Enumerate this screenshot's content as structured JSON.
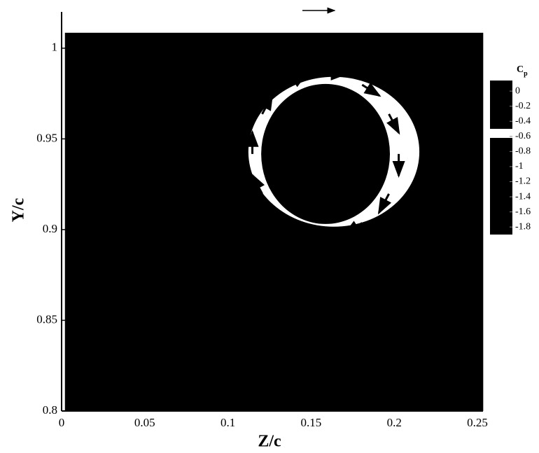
{
  "chart_data": {
    "type": "contour",
    "x_label": "Z/c",
    "y_label": "Y/c",
    "xlim": [
      0,
      0.25
    ],
    "ylim": [
      0.8,
      1.02
    ],
    "xticks": [
      0,
      0.05,
      0.1,
      0.15,
      0.2,
      0.25
    ],
    "yticks": [
      0.8,
      0.85,
      0.9,
      0.95,
      1
    ],
    "background_color": "#000",
    "field": {
      "zlim": [
        0.002,
        0.2535
      ],
      "ylim": [
        0.8,
        1.0085
      ]
    },
    "regions": [
      {
        "color": "#fff",
        "outer": {
          "z": 0.1637,
          "y": 0.9429,
          "rz": 0.0514,
          "ry": 0.0413
        },
        "inner": {
          "z": 0.1587,
          "y": 0.9417,
          "rz": 0.0387,
          "ry": 0.0386
        }
      }
    ],
    "vectors": {
      "color": "#000",
      "z": [
        0.2027,
        0.1968,
        0.1807,
        0.1587,
        0.1367,
        0.1206,
        0.1147,
        0.1206,
        0.1367,
        0.1587,
        0.1807,
        0.1968
      ],
      "y": [
        0.9417,
        0.9637,
        0.9798,
        0.9857,
        0.9798,
        0.9637,
        0.9417,
        0.9197,
        0.9036,
        0.8977,
        0.9036,
        0.9197
      ],
      "u": [
        0,
        0.006,
        0.0104,
        0.012,
        0.0104,
        0.006,
        0,
        -0.006,
        -0.0104,
        -0.012,
        -0.0104,
        -0.006
      ],
      "v": [
        -0.012,
        -0.0104,
        -0.006,
        0,
        0.006,
        0.0104,
        0.012,
        0.0104,
        0.006,
        0,
        -0.006,
        -0.0104
      ]
    },
    "colorbar": {
      "title": "C",
      "title_sub": "p",
      "clim": [
        -1.9,
        0.14
      ],
      "ticks": [
        0,
        -0.2,
        -0.4,
        -0.6,
        -0.8,
        -1,
        -1.2,
        -1.4,
        -1.6,
        -1.8
      ],
      "color": "#000",
      "bands": [
        {
          "from": -0.62,
          "to": -0.5,
          "color": "#fff"
        }
      ]
    }
  }
}
